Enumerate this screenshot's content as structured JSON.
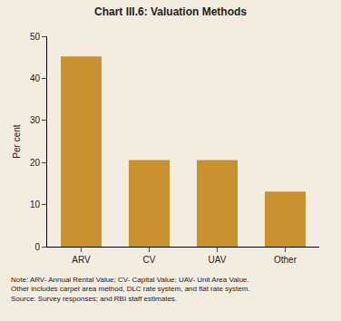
{
  "chart_data": {
    "type": "bar",
    "title": "Chart III.6: Valuation Methods",
    "y_label": "Per cent",
    "categories": [
      "ARV",
      "CV",
      "UAV",
      "Other"
    ],
    "values": [
      45.2,
      20.6,
      20.6,
      13.1
    ],
    "color": "#c8922e",
    "ylim": [
      0,
      50
    ],
    "yticks": [
      0,
      10,
      20,
      30,
      40,
      50
    ],
    "grid": false,
    "notes": [
      "Note: ARV- Annual Rental Value; CV- Capital Value; UAV- Unit Area Value.",
      "Other includes carpet area method, DLC rate system, and flat rate system.",
      "Source: Survey responses; and RBI staff estimates."
    ]
  }
}
